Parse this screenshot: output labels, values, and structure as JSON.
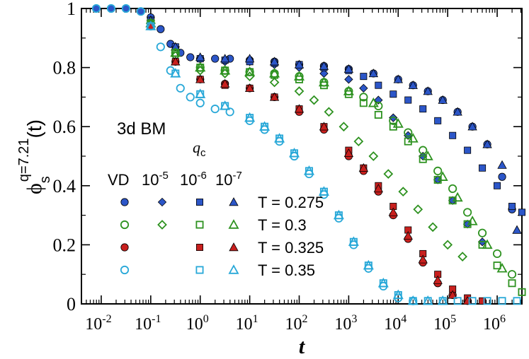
{
  "chart_data": {
    "type": "scatter",
    "annotation": "3d BM",
    "xlabel": "t",
    "ylabel": "phi_s^{q=7.21}(t)",
    "ylabel_parts": {
      "base": "ϕ",
      "sub": "s",
      "sup": "q=7.21",
      "arg": "(t)"
    },
    "xscale": "log",
    "xlim_log10": [
      -2.4,
      6.5
    ],
    "ylim": [
      0,
      1
    ],
    "x_ticks": [
      {
        "base": "10",
        "exp": "-2",
        "log10": -2
      },
      {
        "base": "10",
        "exp": "-1",
        "log10": -1
      },
      {
        "base": "10",
        "exp": "0",
        "log10": 0
      },
      {
        "base": "10",
        "exp": "1",
        "log10": 1
      },
      {
        "base": "10",
        "exp": "2",
        "log10": 2
      },
      {
        "base": "10",
        "exp": "3",
        "log10": 3
      },
      {
        "base": "10",
        "exp": "4",
        "log10": 4
      },
      {
        "base": "10",
        "exp": "5",
        "log10": 5
      },
      {
        "base": "10",
        "exp": "6",
        "log10": 6
      }
    ],
    "y_ticks": [
      "0",
      "0.2",
      "0.4",
      "0.6",
      "0.8",
      "1"
    ],
    "legend": {
      "qc_label": "q",
      "qc_sub": "c",
      "columns": [
        "VD",
        "10^-5",
        "10^-6",
        "10^-7"
      ],
      "column_parts": [
        {
          "base": "VD",
          "exp": ""
        },
        {
          "base": "10",
          "exp": "-5"
        },
        {
          "base": "10",
          "exp": "-6"
        },
        {
          "base": "10",
          "exp": "-7"
        }
      ],
      "rows": [
        "T = 0.275",
        "T = 0.3",
        "T = 0.325",
        "T = 0.35"
      ]
    },
    "series": [
      {
        "name": "T=0.275 VD",
        "T": "0.275",
        "method": "VD",
        "color": "#2c56c8",
        "filled": true,
        "marker": "circle",
        "x": [
          -2.1,
          -1.8,
          -1.5,
          -1.2,
          -1,
          -0.8,
          -0.6,
          -0.4,
          -0.2,
          0,
          0.3,
          0.6,
          1,
          1.5,
          2,
          2.5,
          3,
          3.5,
          4,
          4.3,
          4.6,
          4.9,
          5.2,
          5.5,
          5.8,
          6.1,
          6.3
        ],
        "y": [
          1,
          1,
          1,
          0.99,
          0.97,
          0.93,
          0.88,
          0.85,
          0.835,
          0.83,
          0.83,
          0.83,
          0.825,
          0.82,
          0.81,
          0.805,
          0.795,
          0.78,
          0.76,
          0.74,
          0.72,
          0.69,
          0.65,
          0.6,
          0.54,
          0.43,
          0.32
        ]
      },
      {
        "name": "T=0.275 qc=1e-5",
        "T": "0.275",
        "method": "1e-5",
        "color": "#2c56c8",
        "filled": true,
        "marker": "diamond",
        "x": [
          -1,
          -0.5,
          0,
          0.5,
          1,
          1.5,
          2,
          2.5,
          3,
          3.3,
          3.6,
          3.9,
          4.2,
          4.5,
          4.8,
          5.1,
          5.4,
          5.7
        ],
        "y": [
          0.96,
          0.87,
          0.83,
          0.82,
          0.82,
          0.81,
          0.8,
          0.78,
          0.76,
          0.73,
          0.69,
          0.63,
          0.57,
          0.5,
          0.42,
          0.35,
          0.27,
          0.21
        ]
      },
      {
        "name": "T=0.275 qc=1e-6",
        "T": "0.275",
        "method": "1e-6",
        "color": "#2c56c8",
        "filled": true,
        "marker": "square",
        "x": [
          -1,
          -0.5,
          0,
          0.5,
          1,
          1.5,
          2,
          2.5,
          3,
          3.3,
          3.6,
          3.9,
          4.2,
          4.5,
          4.8,
          5.1,
          5.4,
          5.7,
          6,
          6.3,
          6.5
        ],
        "y": [
          0.96,
          0.87,
          0.83,
          0.825,
          0.82,
          0.815,
          0.81,
          0.8,
          0.79,
          0.77,
          0.74,
          0.71,
          0.69,
          0.66,
          0.62,
          0.57,
          0.52,
          0.46,
          0.4,
          0.33,
          0.31
        ]
      },
      {
        "name": "T=0.275 qc=1e-7",
        "T": "0.275",
        "method": "1e-7",
        "color": "#2c56c8",
        "filled": true,
        "marker": "triangle",
        "x": [
          -1,
          -0.5,
          0,
          0.5,
          1,
          1.5,
          2,
          2.5,
          3,
          3.5,
          4,
          4.3,
          4.6,
          4.9,
          5.2,
          5.5,
          5.8,
          6.1,
          6.4
        ],
        "y": [
          0.96,
          0.87,
          0.835,
          0.83,
          0.83,
          0.82,
          0.81,
          0.805,
          0.795,
          0.78,
          0.76,
          0.74,
          0.72,
          0.69,
          0.65,
          0.6,
          0.54,
          0.47,
          0.25
        ]
      },
      {
        "name": "T=0.3 VD",
        "T": "0.3",
        "method": "VD",
        "color": "#2e9220",
        "filled": false,
        "marker": "circle",
        "x": [
          -1,
          -0.5,
          0,
          0.5,
          1,
          1.5,
          2,
          2.5,
          3,
          3.3,
          3.6,
          3.9,
          4.2,
          4.5,
          4.8,
          5.1,
          5.4,
          5.7,
          6,
          6.3
        ],
        "y": [
          0.95,
          0.85,
          0.8,
          0.79,
          0.785,
          0.78,
          0.77,
          0.75,
          0.72,
          0.7,
          0.67,
          0.62,
          0.58,
          0.52,
          0.45,
          0.39,
          0.31,
          0.24,
          0.17,
          0.1
        ]
      },
      {
        "name": "T=0.3 qc=1e-5",
        "T": "0.3",
        "method": "1e-5",
        "color": "#2e9220",
        "filled": false,
        "marker": "diamond",
        "x": [
          -1,
          -0.5,
          0,
          0.5,
          1,
          1.5,
          2,
          2.3,
          2.6,
          2.9,
          3.2,
          3.5,
          3.8,
          4.1,
          4.4,
          4.7,
          5,
          5.3
        ],
        "y": [
          0.95,
          0.84,
          0.79,
          0.78,
          0.77,
          0.75,
          0.72,
          0.69,
          0.65,
          0.6,
          0.55,
          0.5,
          0.44,
          0.38,
          0.32,
          0.26,
          0.2,
          0.16
        ]
      },
      {
        "name": "T=0.3 qc=1e-6",
        "T": "0.3",
        "method": "1e-6",
        "color": "#2e9220",
        "filled": false,
        "marker": "square",
        "x": [
          -1,
          -0.5,
          0,
          0.5,
          1,
          1.5,
          2,
          2.5,
          3,
          3.3,
          3.6,
          3.9,
          4.2,
          4.5,
          4.8,
          5.1,
          5.4,
          5.7,
          6,
          6.3,
          6.5
        ],
        "y": [
          0.95,
          0.85,
          0.8,
          0.79,
          0.785,
          0.775,
          0.76,
          0.74,
          0.71,
          0.68,
          0.64,
          0.6,
          0.55,
          0.49,
          0.42,
          0.35,
          0.27,
          0.2,
          0.13,
          0.07,
          0.04
        ]
      },
      {
        "name": "T=0.3 qc=1e-7",
        "T": "0.3",
        "method": "1e-7",
        "color": "#2e9220",
        "filled": false,
        "marker": "triangle",
        "x": [
          -1,
          -0.5,
          0,
          0.5,
          1,
          1.5,
          2,
          2.5,
          3,
          3.5,
          4,
          4.3,
          4.6,
          4.9,
          5.2,
          5.5,
          5.8,
          6.1
        ],
        "y": [
          0.95,
          0.85,
          0.8,
          0.79,
          0.785,
          0.78,
          0.77,
          0.75,
          0.72,
          0.68,
          0.61,
          0.56,
          0.5,
          0.43,
          0.36,
          0.28,
          0.2,
          0.12
        ]
      },
      {
        "name": "T=0.325 VD",
        "T": "0.325",
        "method": "VD",
        "color": "#c8201e",
        "filled": true,
        "marker": "circle",
        "x": [
          -1,
          -0.5,
          0,
          0.5,
          1,
          1.5,
          2,
          2.5,
          3,
          3.3,
          3.6,
          3.9,
          4.2,
          4.5,
          4.8,
          5.1,
          5.4
        ],
        "y": [
          0.94,
          0.82,
          0.76,
          0.745,
          0.73,
          0.7,
          0.65,
          0.59,
          0.5,
          0.45,
          0.38,
          0.3,
          0.22,
          0.14,
          0.07,
          0.03,
          0.01
        ]
      },
      {
        "name": "T=0.325 qc=1e-6",
        "T": "0.325",
        "method": "1e-6",
        "color": "#c8201e",
        "filled": true,
        "marker": "square",
        "x": [
          -1,
          -0.5,
          0,
          0.5,
          1,
          1.5,
          2,
          2.5,
          3,
          3.3,
          3.6,
          3.9,
          4.2,
          4.5,
          4.8,
          5.1,
          5.4,
          5.7
        ],
        "y": [
          0.94,
          0.82,
          0.76,
          0.74,
          0.73,
          0.7,
          0.66,
          0.6,
          0.52,
          0.46,
          0.4,
          0.33,
          0.25,
          0.17,
          0.1,
          0.05,
          0.02,
          0.01
        ]
      },
      {
        "name": "T=0.325 qc=1e-7",
        "T": "0.325",
        "method": "1e-7",
        "color": "#c8201e",
        "filled": true,
        "marker": "triangle",
        "x": [
          -1,
          -0.5,
          0,
          0.5,
          1,
          1.5,
          2,
          2.5,
          3,
          3.3,
          3.6,
          3.9,
          4.2,
          4.5,
          4.8,
          5.1,
          5.4
        ],
        "y": [
          0.94,
          0.82,
          0.76,
          0.745,
          0.73,
          0.7,
          0.66,
          0.6,
          0.51,
          0.46,
          0.39,
          0.31,
          0.23,
          0.15,
          0.08,
          0.03,
          0.01
        ]
      },
      {
        "name": "T=0.35 VD",
        "T": "0.35",
        "method": "VD",
        "color": "#28a8d8",
        "filled": false,
        "marker": "circle",
        "x": [
          -2.1,
          -1.8,
          -1.5,
          -1.2,
          -1,
          -0.8,
          -0.6,
          -0.4,
          -0.2,
          0,
          0.3,
          0.6,
          1,
          1.3,
          1.6,
          1.9,
          2.2,
          2.5,
          2.8,
          3.1,
          3.4,
          3.7,
          4,
          4.3
        ],
        "y": [
          1,
          1,
          1,
          0.99,
          0.94,
          0.87,
          0.79,
          0.73,
          0.7,
          0.68,
          0.66,
          0.65,
          0.62,
          0.59,
          0.55,
          0.5,
          0.44,
          0.37,
          0.29,
          0.2,
          0.12,
          0.06,
          0.02,
          0.01
        ]
      },
      {
        "name": "T=0.35 qc=1e-6",
        "T": "0.35",
        "method": "1e-6",
        "color": "#28a8d8",
        "filled": false,
        "marker": "square",
        "x": [
          -1,
          -0.5,
          0,
          0.5,
          1,
          1.3,
          1.6,
          1.9,
          2.2,
          2.5,
          2.8,
          3.1,
          3.4,
          3.7,
          4,
          4.3,
          4.6,
          4.9,
          5.2,
          5.5,
          5.8,
          6.1,
          6.4
        ],
        "y": [
          0.94,
          0.78,
          0.71,
          0.67,
          0.63,
          0.6,
          0.56,
          0.51,
          0.45,
          0.38,
          0.3,
          0.21,
          0.13,
          0.07,
          0.03,
          0.01,
          0.01,
          0.01,
          0.01,
          0.01,
          0.01,
          0.01,
          0.01
        ]
      },
      {
        "name": "T=0.35 qc=1e-7",
        "T": "0.35",
        "method": "1e-7",
        "color": "#28a8d8",
        "filled": false,
        "marker": "triangle",
        "x": [
          -1,
          -0.5,
          0,
          0.5,
          1,
          1.3,
          1.6,
          1.9,
          2.2,
          2.5,
          2.8,
          3.1,
          3.4,
          3.7,
          4,
          4.3,
          4.6,
          4.9
        ],
        "y": [
          0.94,
          0.78,
          0.71,
          0.67,
          0.63,
          0.6,
          0.56,
          0.51,
          0.45,
          0.38,
          0.3,
          0.21,
          0.13,
          0.07,
          0.03,
          0.01,
          0.01,
          0.01
        ]
      }
    ]
  }
}
